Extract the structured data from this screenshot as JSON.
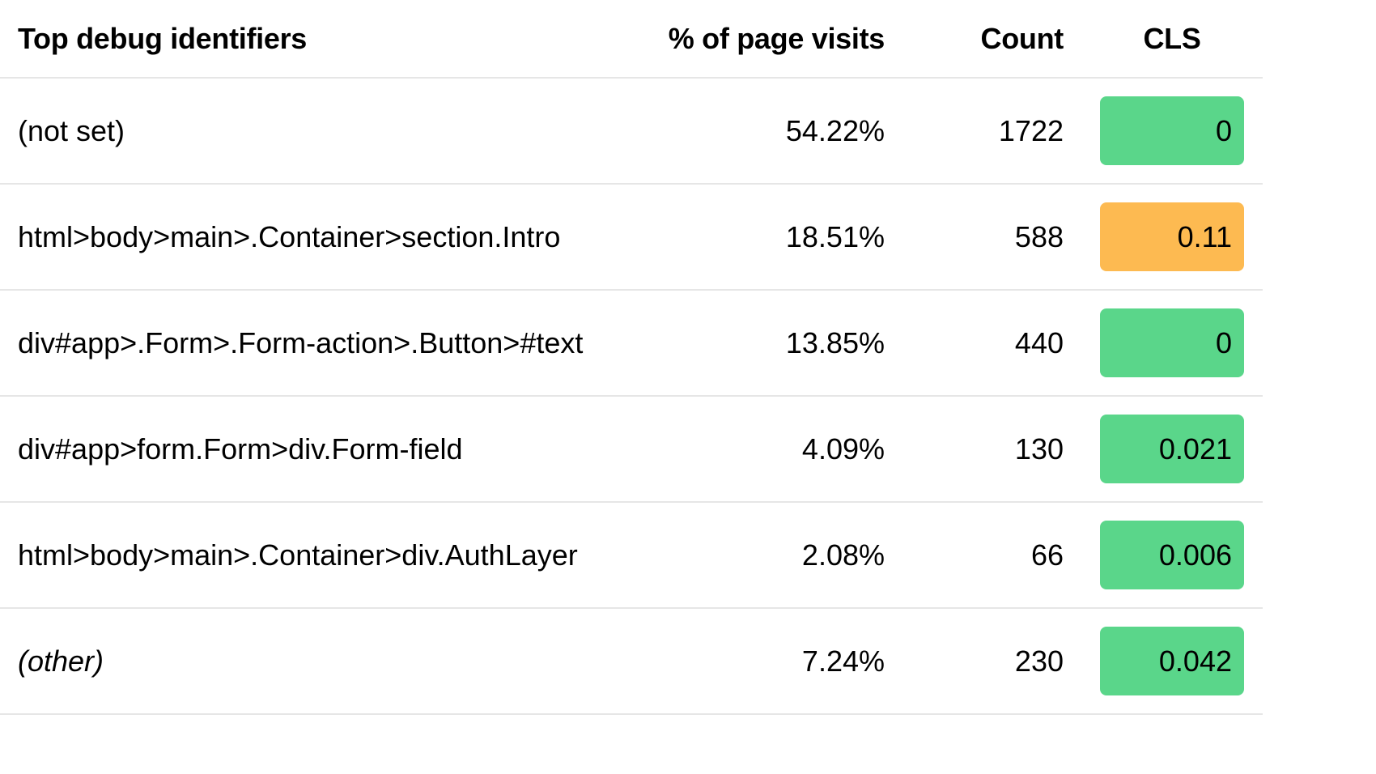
{
  "header": {
    "identifier": "Top debug identifiers",
    "percent": "% of page visits",
    "count": "Count",
    "cls": "CLS"
  },
  "rows": [
    {
      "identifier": "(not set)",
      "percent": "54.22%",
      "count": "1722",
      "cls": "0",
      "cls_status": "good",
      "italic": false
    },
    {
      "identifier": "html>body>main>.Container>section.Intro",
      "percent": "18.51%",
      "count": "588",
      "cls": "0.11",
      "cls_status": "needs-improvement",
      "italic": false
    },
    {
      "identifier": "div#app>.Form>.Form-action>.Button>#text",
      "percent": "13.85%",
      "count": "440",
      "cls": "0",
      "cls_status": "good",
      "italic": false
    },
    {
      "identifier": "div#app>form.Form>div.Form-field",
      "percent": "4.09%",
      "count": "130",
      "cls": "0.021",
      "cls_status": "good",
      "italic": false
    },
    {
      "identifier": "html>body>main>.Container>div.AuthLayer",
      "percent": "2.08%",
      "count": "66",
      "cls": "0.006",
      "cls_status": "good",
      "italic": false
    },
    {
      "identifier": "(other)",
      "percent": "7.24%",
      "count": "230",
      "cls": "0.042",
      "cls_status": "good",
      "italic": true
    }
  ],
  "colors": {
    "good": "#5ad68a",
    "needs-improvement": "#fdba51",
    "divider": "#e6e6e6"
  }
}
